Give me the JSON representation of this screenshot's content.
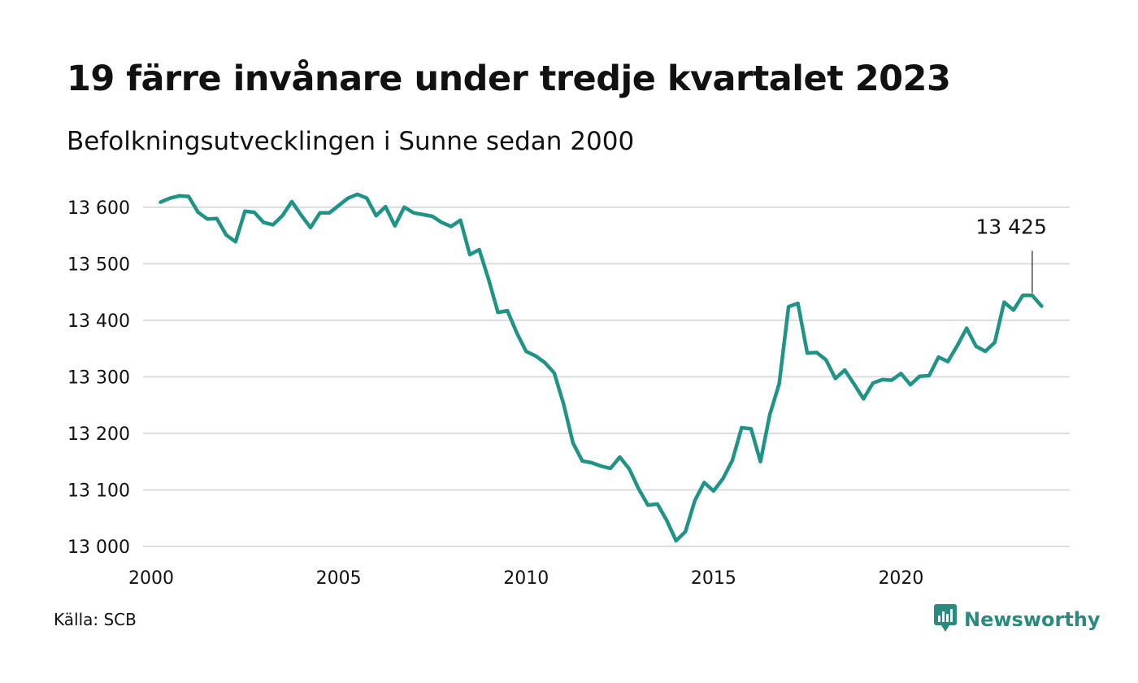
{
  "header": {
    "title": "19 färre invånare under tredje kvartalet 2023",
    "subtitle": "Befolkningsutvecklingen i Sunne sedan 2000"
  },
  "footer": {
    "source": "Källa: SCB",
    "brand": "Newsworthy"
  },
  "colors": {
    "line": "#1f9486",
    "grid": "#dddddd",
    "brand": "#2a8a80"
  },
  "icons": {
    "brand_logo": "newsworthy-logo-icon"
  },
  "chart_data": {
    "type": "line",
    "title": "19 färre invånare under tredje kvartalet 2023",
    "subtitle": "Befolkningsutvecklingen i Sunne sedan 2000",
    "xlabel": "",
    "ylabel": "",
    "x_ticks": [
      2000,
      2005,
      2010,
      2015,
      2020
    ],
    "y_ticks": [
      13000,
      13100,
      13200,
      13300,
      13400,
      13500,
      13600
    ],
    "y_tick_labels": [
      "13 000",
      "13 100",
      "13 200",
      "13 300",
      "13 400",
      "13 500",
      "13 600"
    ],
    "xlim": [
      2000,
      2024.5
    ],
    "ylim": [
      13000,
      13640
    ],
    "grid": true,
    "legend": "none",
    "annotation": {
      "label": "13 425",
      "x": 2023.5,
      "y": 13425
    },
    "series": [
      {
        "x_start": 2000.25,
        "x_step": 0.25,
        "values": [
          13609,
          13616,
          13620,
          13619,
          13591,
          13579,
          13580,
          13551,
          13539,
          13593,
          13591,
          13573,
          13569,
          13585,
          13610,
          13586,
          13564,
          13590,
          13590,
          13603,
          13616,
          13623,
          13616,
          13585,
          13601,
          13567,
          13600,
          13590,
          13587,
          13584,
          13573,
          13566,
          13577,
          13516,
          13525,
          13472,
          13414,
          13417,
          13378,
          13345,
          13337,
          13325,
          13307,
          13252,
          13183,
          13151,
          13148,
          13142,
          13138,
          13158,
          13137,
          13102,
          13073,
          13075,
          13046,
          13010,
          13026,
          13081,
          13113,
          13098,
          13120,
          13152,
          13210,
          13208,
          13150,
          13233,
          13288,
          13424,
          13430,
          13342,
          13343,
          13330,
          13297,
          13312,
          13287,
          13261,
          13289,
          13295,
          13294,
          13306,
          13286,
          13301,
          13302,
          13335,
          13327,
          13355,
          13386,
          13354,
          13345,
          13361,
          13432,
          13418,
          13444,
          13444,
          13425
        ]
      }
    ]
  }
}
